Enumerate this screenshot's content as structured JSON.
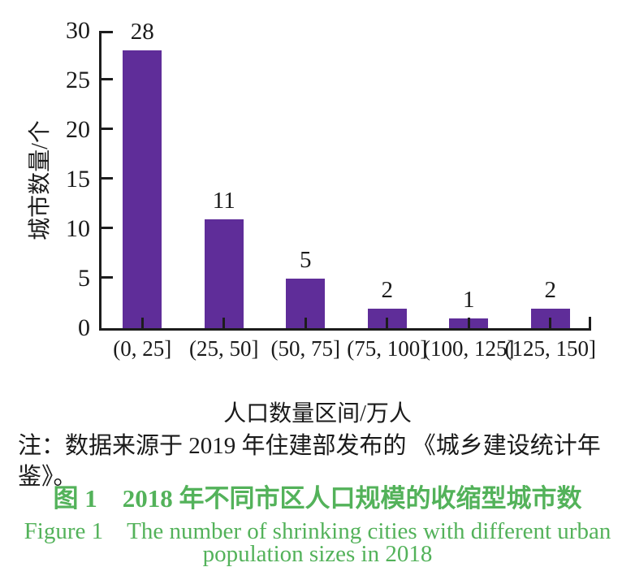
{
  "figure": {
    "note": "注：数据来源于 2019 年住建部发布的 《城乡建设统计年鉴》。",
    "caption_zh": "图 1　2018 年不同市区人口规模的收缩型城市数",
    "caption_en_line1": "Figure 1　The number of shrinking cities with different urban",
    "caption_en_line2": "population sizes in 2018",
    "caption_color": "#53b25a"
  },
  "chart_data": {
    "type": "bar",
    "title": "",
    "categories": [
      "(0, 25]",
      "(25, 50]",
      "(50, 75]",
      "(75, 100]",
      "(100, 125]",
      "(125, 150]"
    ],
    "values": [
      28,
      11,
      5,
      2,
      1,
      2
    ],
    "bar_labels": [
      "28",
      "11",
      "5",
      "2",
      "1",
      "2"
    ],
    "xlabel": "人口数量区间/万人",
    "ylabel": "城市数量/个",
    "ylim": [
      0,
      30
    ],
    "yticks": [
      0,
      5,
      10,
      15,
      20,
      25,
      30
    ],
    "grid": false,
    "legend": "none",
    "bar_color": "#5f2d99",
    "axis_color": "#1d1d1d",
    "text_color": "#1a1a1a"
  }
}
